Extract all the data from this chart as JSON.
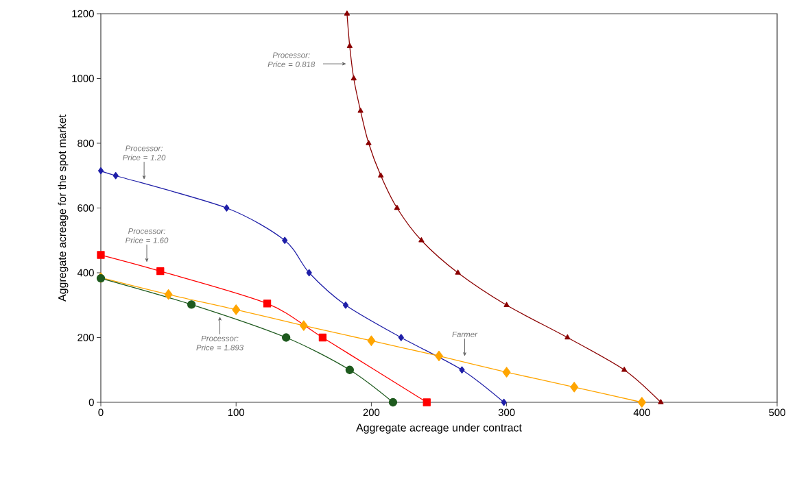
{
  "chart_data": {
    "type": "line",
    "xlabel": "Aggregate acreage under contract",
    "ylabel": "Aggregate acreage for the spot market",
    "xlim": [
      0,
      500
    ],
    "ylim": [
      0,
      1200
    ],
    "xticks": [
      0,
      100,
      200,
      300,
      400,
      500
    ],
    "yticks": [
      0,
      200,
      400,
      600,
      800,
      1000,
      1200
    ],
    "grid": false,
    "line_style": "solid",
    "series": [
      {
        "color": "#8b0000",
        "marker": "triangle",
        "x": [
          182,
          184,
          187,
          192,
          198,
          207,
          219,
          237,
          264,
          300,
          345,
          387,
          414
        ],
        "values": [
          1200,
          1100,
          1000,
          900,
          800,
          700,
          600,
          500,
          400,
          300,
          200,
          100,
          0
        ]
      },
      {
        "color": "#1f1fa8",
        "marker": "diamond",
        "x": [
          0,
          11,
          93,
          136,
          154,
          181,
          222,
          267,
          298
        ],
        "values": [
          715,
          700,
          600,
          500,
          400,
          300,
          200,
          100,
          0
        ]
      },
      {
        "color": "#ff0000",
        "marker": "square",
        "x": [
          0,
          44,
          123,
          164,
          241
        ],
        "values": [
          455,
          405,
          305,
          200,
          0
        ]
      },
      {
        "color": "#ffa500",
        "marker": "diamond",
        "x": [
          0,
          50,
          100,
          150,
          200,
          250,
          300,
          350,
          400
        ],
        "values": [
          385,
          333,
          286,
          237,
          190,
          143,
          93,
          47,
          0
        ]
      },
      {
        "color": "#1e5a1e",
        "marker": "circle",
        "x": [
          0,
          67,
          137,
          184,
          216
        ],
        "values": [
          383,
          302,
          200,
          100,
          0
        ]
      }
    ],
    "annotations": [
      "Processor: Price = 0.818",
      "Processor: Price = 1.20",
      "Processor: Price = 1.60",
      "Processor: Price = 1.893",
      "Farmer"
    ]
  }
}
